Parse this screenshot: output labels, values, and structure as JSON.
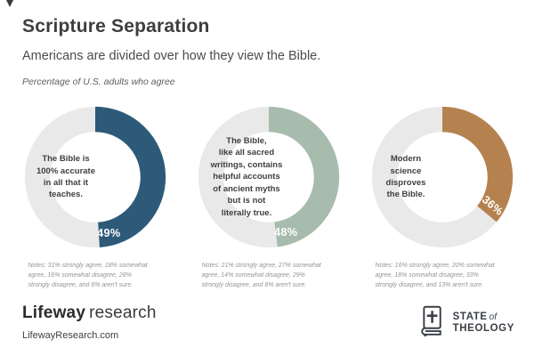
{
  "header": {
    "title": "Scripture Separation",
    "subtitle": "Americans are divided over how they view the Bible.",
    "note": "Percentage of U.S. adults who agree"
  },
  "chart_data": {
    "type": "pie",
    "subtype": "donut",
    "title": "Scripture Separation",
    "description": "Percentage of U.S. adults who agree",
    "ring_background": "#e9e9e9",
    "charts": [
      {
        "statement": "The Bible is\n100% accurate\nin all that it\nteaches.",
        "value": 49,
        "label": "49%",
        "color": "#2d5a78",
        "label_rotation": 0,
        "breakdown": {
          "strongly_agree": 31,
          "somewhat_agree": 18,
          "somewhat_disagree": 16,
          "strongly_disagree": 28,
          "arent_sure": 6
        },
        "notes": "Notes: 31% strongly agree, 18% somewhat agree, 16% somewhat disagree, 28% strongly disagree, and 6% aren't sure."
      },
      {
        "statement": "The Bible,\nlike all sacred\nwritings, contains\nhelpful accounts\nof ancient myths\nbut is not\nliterally true.",
        "value": 48,
        "label": "48%",
        "color": "#a7bcac",
        "label_rotation": 0,
        "breakdown": {
          "strongly_agree": 21,
          "somewhat_agree": 27,
          "somewhat_disagree": 14,
          "strongly_disagree": 29,
          "arent_sure": 8
        },
        "notes": "Notes: 21% strongly agree, 27% somewhat agree, 14% somewhat disagree, 29% strongly disagree, and 8% aren't sure."
      },
      {
        "statement": "Modern\nscience\ndisproves\nthe Bible.",
        "value": 36,
        "label": "36%",
        "color": "#b5824f",
        "label_rotation": 40,
        "breakdown": {
          "strongly_agree": 16,
          "somewhat_agree": 20,
          "somewhat_disagree": 18,
          "strongly_disagree": 33,
          "arent_sure": 13
        },
        "notes": "Notes: 16% strongly agree, 20% somewhat agree, 18% somewhat disagree, 33% strongly disagree, and 13% aren't sure."
      }
    ]
  },
  "footer": {
    "brand_bold": "Lifeway",
    "brand_light": "research",
    "website": "LifewayResearch.com",
    "logo": {
      "icon": "bible-book-cross-icon",
      "line1_bold": "STATE",
      "line1_italic": "of",
      "line2": "THEOLOGY"
    }
  }
}
